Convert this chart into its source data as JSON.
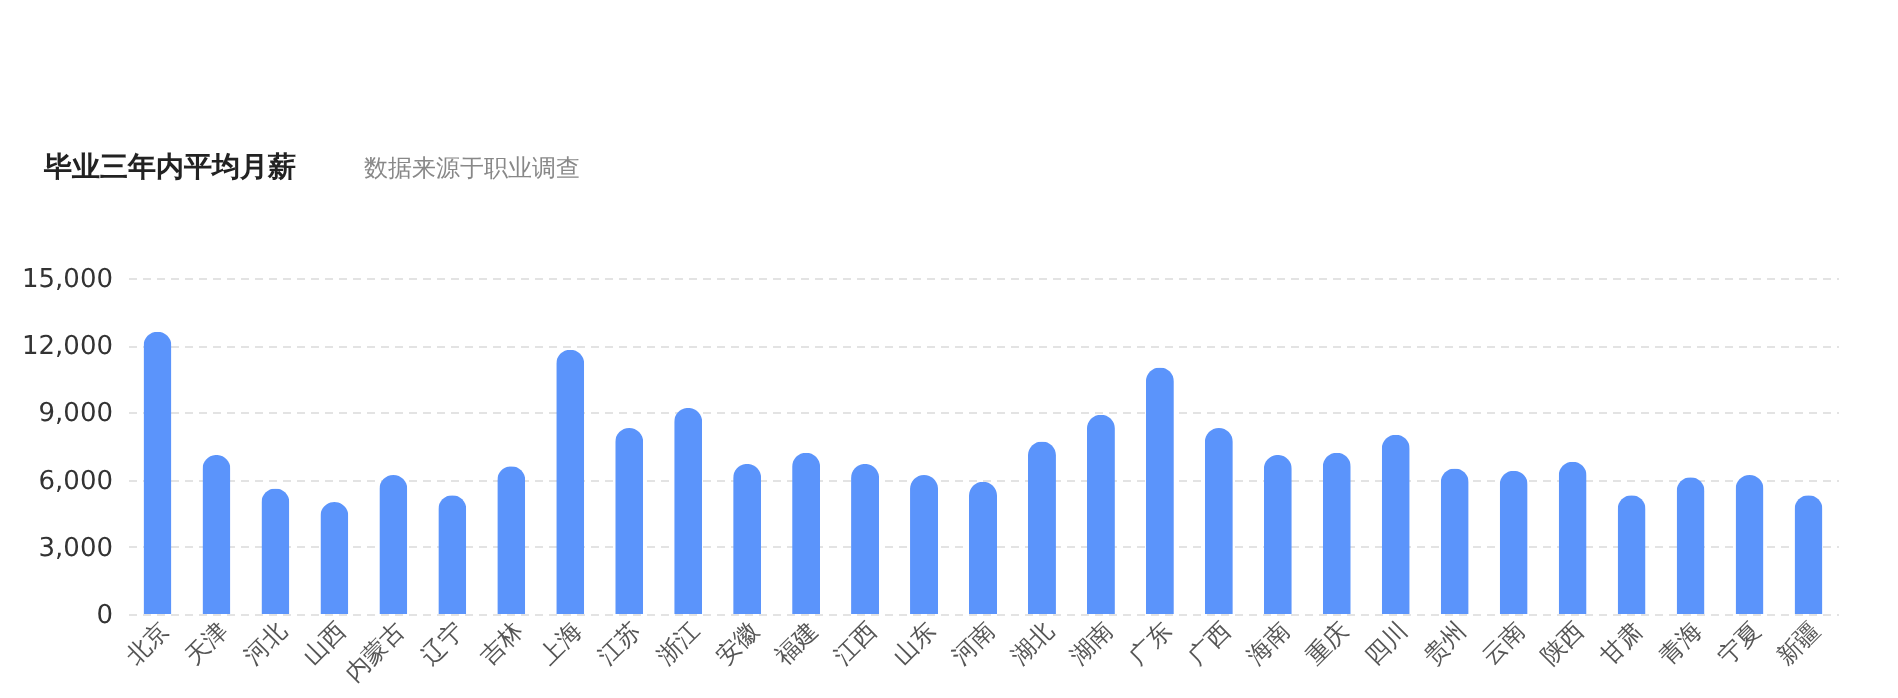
{
  "chart_data": {
    "type": "bar",
    "title": "毕业三年内平均月薪",
    "subtitle": "数据来源于职业调查",
    "categories": [
      "北京",
      "天津",
      "河北",
      "山西",
      "内蒙古",
      "辽宁",
      "吉林",
      "上海",
      "江苏",
      "浙江",
      "安徽",
      "福建",
      "江西",
      "山东",
      "河南",
      "湖北",
      "湖南",
      "广东",
      "广西",
      "海南",
      "重庆",
      "四川",
      "贵州",
      "云南",
      "陕西",
      "甘肃",
      "青海",
      "宁夏",
      "新疆"
    ],
    "values": [
      12600,
      7100,
      5600,
      5000,
      6200,
      5300,
      6600,
      11800,
      8300,
      9200,
      6700,
      7200,
      6700,
      6200,
      5900,
      7700,
      8900,
      11000,
      8300,
      7100,
      7200,
      8000,
      6500,
      6400,
      6800,
      5300,
      6100,
      6200,
      5300
    ],
    "color": "#5b94fb",
    "ylim": [
      0,
      15000
    ],
    "yticks": [
      0,
      {
        "value": 3000,
        "label": "3,000"
      },
      {
        "value": 6000,
        "label": "6,000"
      },
      {
        "value": 9000,
        "label": "9,000"
      },
      {
        "value": 12000,
        "label": "12,000"
      },
      {
        "value": 15000,
        "label": "15,000"
      }
    ],
    "grid": "y"
  }
}
